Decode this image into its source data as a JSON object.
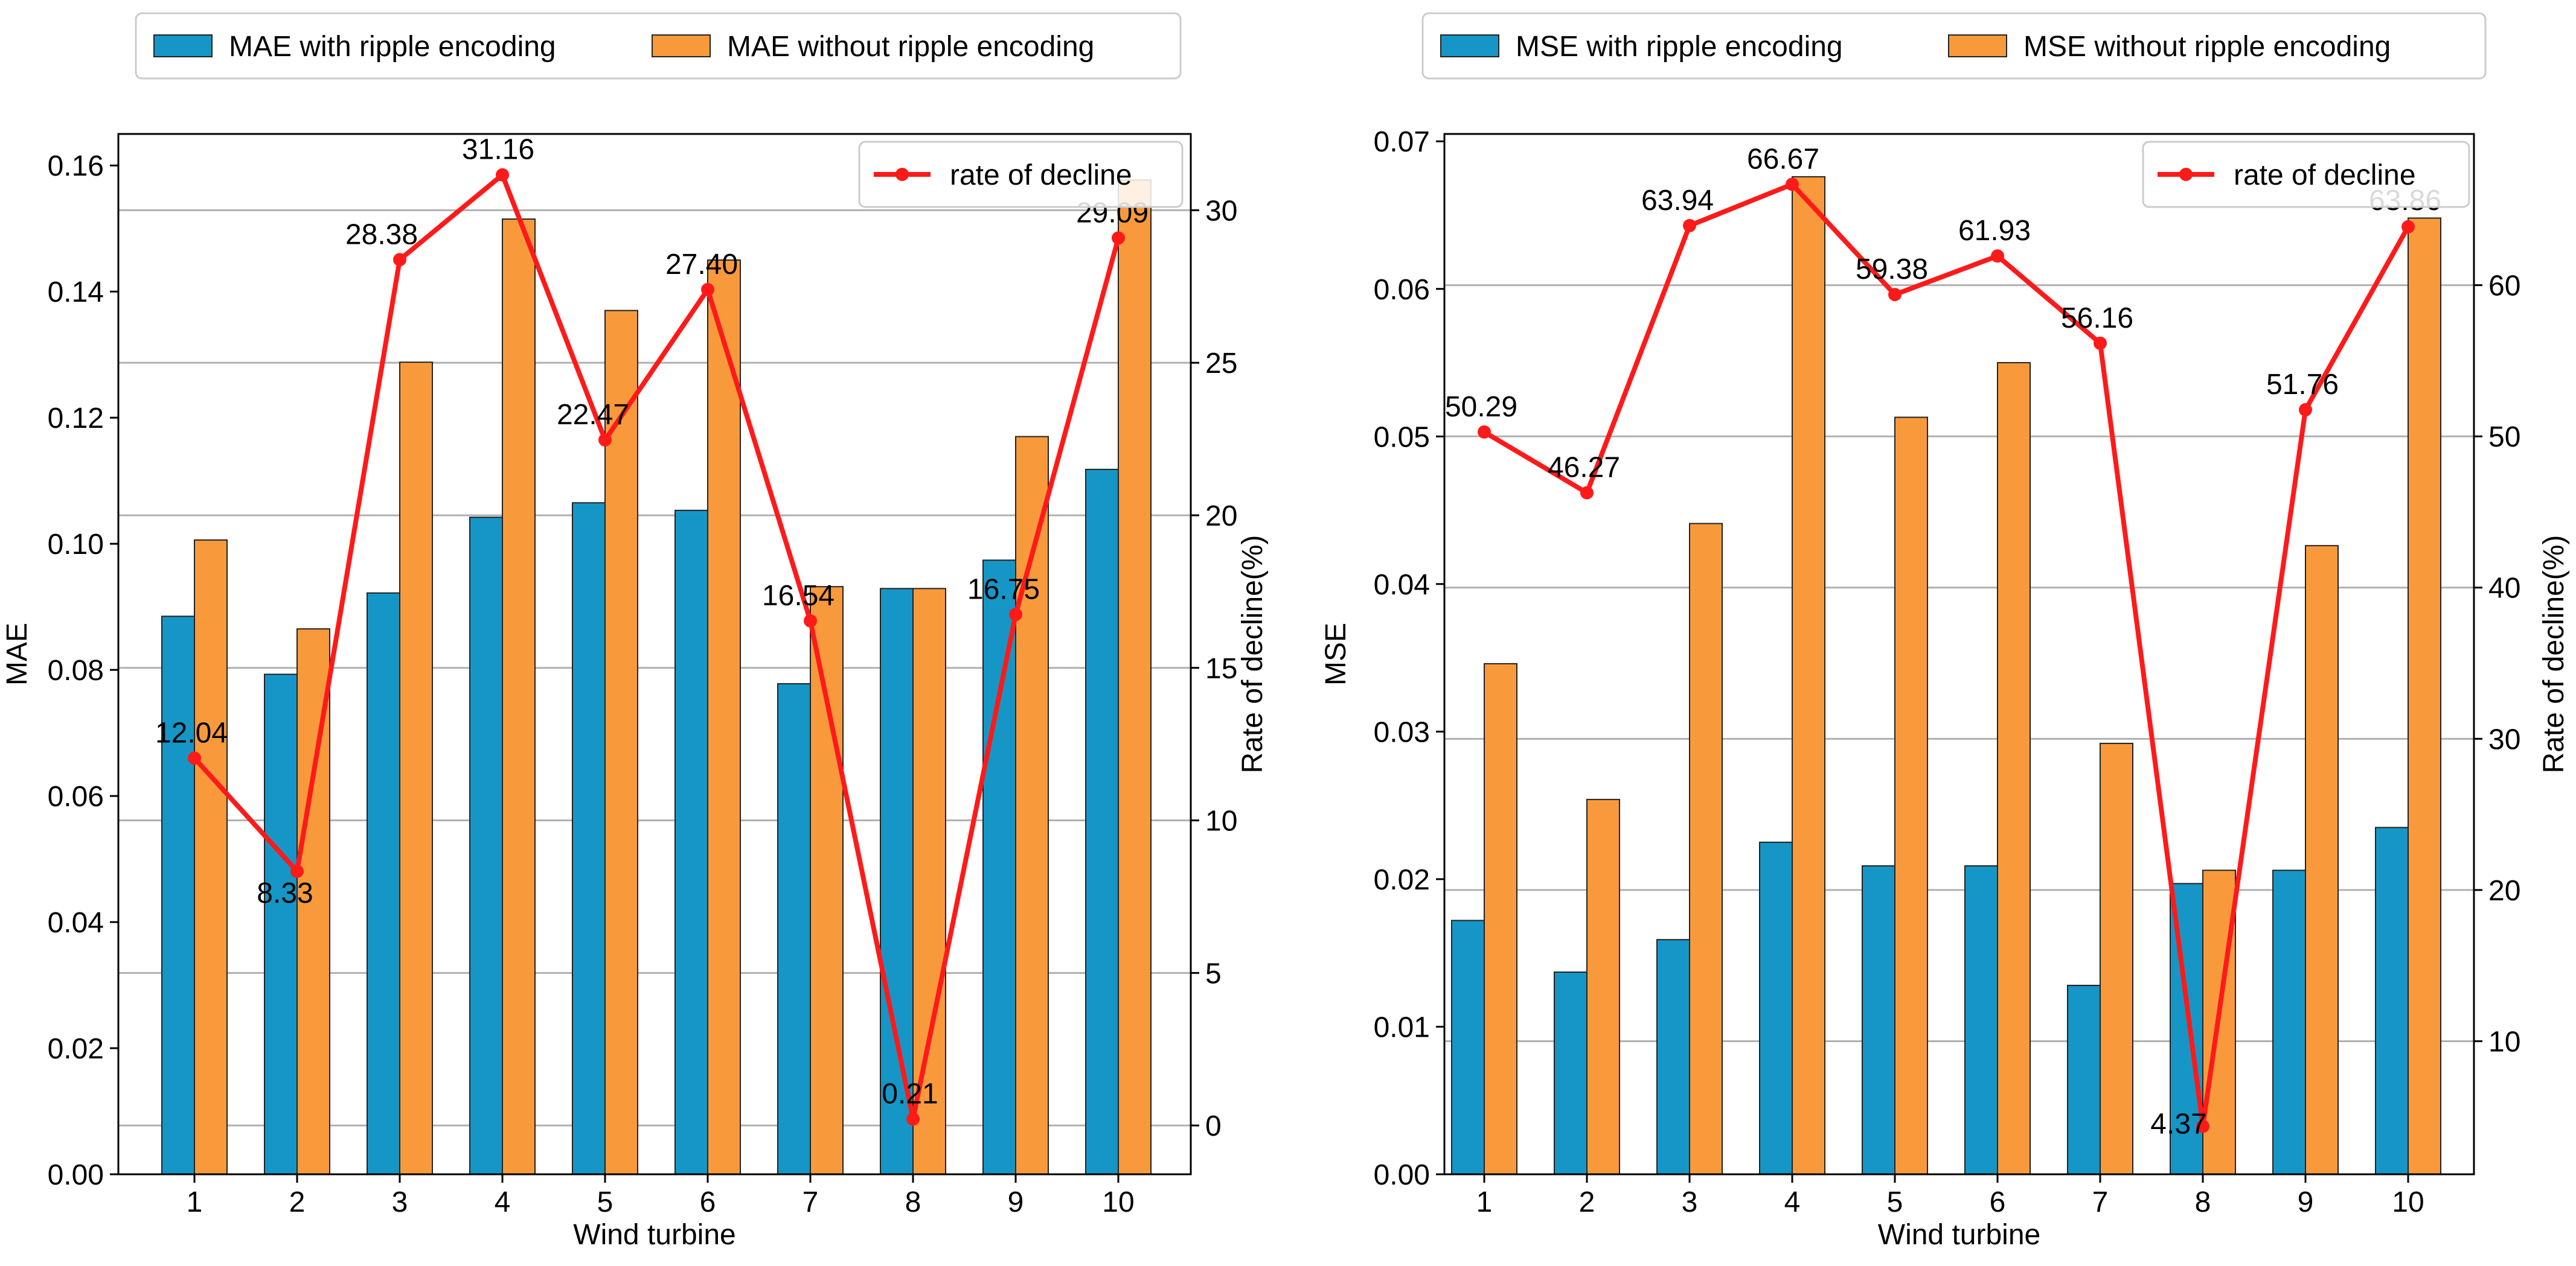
{
  "chart_data": [
    {
      "type": "bar",
      "categories": [
        "1",
        "2",
        "3",
        "4",
        "5",
        "6",
        "7",
        "8",
        "9",
        "10"
      ],
      "xlabel": "Wind turbine",
      "ylabel": "MAE",
      "ylabel_right": "Rate of decline(%)",
      "ylim": [
        0,
        0.165
      ],
      "yticks": [
        0.0,
        0.02,
        0.04,
        0.06,
        0.08,
        0.1,
        0.12,
        0.14,
        0.16
      ],
      "ytick_labels": [
        "0.00",
        "0.02",
        "0.04",
        "0.06",
        "0.08",
        "0.10",
        "0.12",
        "0.14",
        "0.16"
      ],
      "y2lim": [
        -1.6,
        32.5
      ],
      "y2ticks": [
        0,
        5,
        10,
        15,
        20,
        25,
        30
      ],
      "y2tick_labels": [
        "0",
        "5",
        "10",
        "15",
        "20",
        "25",
        "30"
      ],
      "series": [
        {
          "name": "MAE with ripple encoding",
          "color": "#1696c6",
          "values": [
            0.0885,
            0.0793,
            0.0922,
            0.1042,
            0.1065,
            0.1053,
            0.0778,
            0.0929,
            0.0974,
            0.1118
          ]
        },
        {
          "name": "MAE without ripple encoding",
          "color": "#f89a3c",
          "values": [
            0.1006,
            0.0865,
            0.1288,
            0.1515,
            0.137,
            0.145,
            0.0932,
            0.0929,
            0.117,
            0.1577
          ]
        }
      ],
      "line": {
        "name": "rate of decline",
        "color": "#ff1a1a",
        "values": [
          12.04,
          8.33,
          28.38,
          31.16,
          22.47,
          27.4,
          16.54,
          0.21,
          16.75,
          29.09
        ],
        "labels": [
          "12.04",
          "8.33",
          "28.38",
          "31.16",
          "22.47",
          "27.40",
          "16.54",
          "0.21",
          "16.75",
          "29.09"
        ]
      },
      "legend_top": [
        "MAE with ripple encoding",
        "MAE without ripple encoding"
      ],
      "legend_inner": "rate of decline",
      "grid": true
    },
    {
      "type": "bar",
      "categories": [
        "1",
        "2",
        "3",
        "4",
        "5",
        "6",
        "7",
        "8",
        "9",
        "10"
      ],
      "xlabel": "Wind turbine",
      "ylabel": "MSE",
      "ylabel_right": "Rate of decline(%)",
      "ylim": [
        0,
        0.0705
      ],
      "yticks": [
        0.0,
        0.01,
        0.02,
        0.03,
        0.04,
        0.05,
        0.06,
        0.07
      ],
      "ytick_labels": [
        "0.00",
        "0.01",
        "0.02",
        "0.03",
        "0.04",
        "0.05",
        "0.06",
        "0.07"
      ],
      "y2lim": [
        1.2,
        70.0
      ],
      "y2ticks": [
        10,
        20,
        30,
        40,
        50,
        60
      ],
      "y2tick_labels": [
        "10",
        "20",
        "30",
        "40",
        "50",
        "60"
      ],
      "series": [
        {
          "name": "MSE with ripple encoding",
          "color": "#1696c6",
          "values": [
            0.0172,
            0.0137,
            0.0159,
            0.0225,
            0.0209,
            0.0209,
            0.0128,
            0.0197,
            0.0206,
            0.0235
          ]
        },
        {
          "name": "MSE without ripple encoding",
          "color": "#f89a3c",
          "values": [
            0.0346,
            0.0254,
            0.0441,
            0.0676,
            0.0513,
            0.055,
            0.0292,
            0.0206,
            0.0426,
            0.0648
          ]
        }
      ],
      "line": {
        "name": "rate of decline",
        "color": "#ff1a1a",
        "values": [
          50.29,
          46.27,
          63.94,
          66.67,
          59.38,
          61.93,
          56.16,
          4.37,
          51.76,
          63.86
        ],
        "labels": [
          "50.29",
          "46.27",
          "63.94",
          "66.67",
          "59.38",
          "61.93",
          "56.16",
          "4.37",
          "51.76",
          "63.86"
        ]
      },
      "legend_top": [
        "MSE with ripple encoding",
        "MSE without ripple encoding"
      ],
      "legend_inner": "rate of decline",
      "grid": true
    }
  ]
}
